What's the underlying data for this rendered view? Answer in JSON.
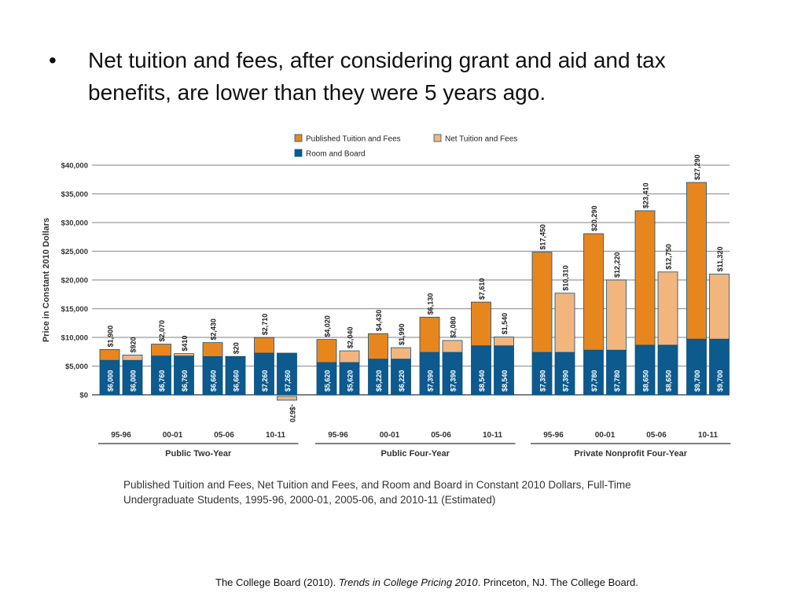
{
  "slide": {
    "bullet_symbol": "•",
    "bullet_text": "Net tuition and fees, after considering grant and aid and tax benefits, are lower than they were 5 years ago.",
    "citation": {
      "part1": "The College Board (2010). ",
      "title": "Trends in College Pricing 2010",
      "part2": ". Princeton, NJ. The College Board."
    }
  },
  "chart_data": {
    "type": "bar",
    "stacked": true,
    "title": "Published Tuition and Fees, Net Tuition and Fees, and Room and Board in Constant 2010 Dollars, Full-Time Undergraduate Students, 1995-96, 2000-01, 2005-06, and 2010-11 (Estimated)",
    "title_line1": "Published Tuition and Fees, Net Tuition and Fees, and Room and Board in Constant 2010 Dollars, Full-Time",
    "title_line2": "Undergraduate Students, 1995-96, 2000-01, 2005-06, and 2010-11 (Estimated)",
    "ylabel": "Price in Constant 2010 Dollars",
    "xlabel": "",
    "ylim": [
      0,
      40000
    ],
    "yticks": [
      0,
      5000,
      10000,
      15000,
      20000,
      25000,
      30000,
      35000,
      40000
    ],
    "ytick_labels": [
      "$0",
      "$5,000",
      "$10,000",
      "$15,000",
      "$20,000",
      "$25,000",
      "$30,000",
      "$35,000",
      "$40,000"
    ],
    "grid": true,
    "legend_position": "top-center",
    "colors": {
      "published": "#e8861e",
      "net": "#f3b57e",
      "room_board": "#0c5a8e",
      "grid": "#9a9a9a",
      "text": "#222222"
    },
    "legend": [
      {
        "key": "published",
        "label": "Published Tuition and Fees"
      },
      {
        "key": "net",
        "label": "Net Tuition and Fees"
      },
      {
        "key": "room_board",
        "label": "Room and Board"
      }
    ],
    "groups": [
      {
        "name": "Public Two-Year",
        "years": [
          {
            "label": "95-96",
            "published": {
              "room_board": 6000,
              "tuition": 1900,
              "room_label": "$6,000",
              "tuition_label": "$1,900"
            },
            "net": {
              "room_board": 6000,
              "tuition": 920,
              "room_label": "$6,000",
              "tuition_label": "$920"
            }
          },
          {
            "label": "00-01",
            "published": {
              "room_board": 6760,
              "tuition": 2070,
              "room_label": "$6,760",
              "tuition_label": "$2,070"
            },
            "net": {
              "room_board": 6760,
              "tuition": 410,
              "room_label": "$6,760",
              "tuition_label": "$410"
            }
          },
          {
            "label": "05-06",
            "published": {
              "room_board": 6660,
              "tuition": 2430,
              "room_label": "$6,660",
              "tuition_label": "$2,430"
            },
            "net": {
              "room_board": 6660,
              "tuition": 20,
              "room_label": "$6,660",
              "tuition_label": "$20"
            }
          },
          {
            "label": "10-11",
            "published": {
              "room_board": 7260,
              "tuition": 2710,
              "room_label": "$7,260",
              "tuition_label": "$2,710"
            },
            "net": {
              "room_board": 7260,
              "tuition": -670,
              "room_label": "$7,260",
              "tuition_label": "-$670"
            }
          }
        ]
      },
      {
        "name": "Public Four-Year",
        "years": [
          {
            "label": "95-96",
            "published": {
              "room_board": 5620,
              "tuition": 4020,
              "room_label": "$5,620",
              "tuition_label": "$4,020"
            },
            "net": {
              "room_board": 5620,
              "tuition": 2040,
              "room_label": "$5,620",
              "tuition_label": "$2,040"
            }
          },
          {
            "label": "00-01",
            "published": {
              "room_board": 6220,
              "tuition": 4430,
              "room_label": "$6,220",
              "tuition_label": "$4,430"
            },
            "net": {
              "room_board": 6220,
              "tuition": 1990,
              "room_label": "$6,220",
              "tuition_label": "$1,990"
            }
          },
          {
            "label": "05-06",
            "published": {
              "room_board": 7390,
              "tuition": 6130,
              "room_label": "$7,390",
              "tuition_label": "$6,130"
            },
            "net": {
              "room_board": 7390,
              "tuition": 2080,
              "room_label": "$7,390",
              "tuition_label": "$2,080"
            }
          },
          {
            "label": "10-11",
            "published": {
              "room_board": 8540,
              "tuition": 7610,
              "room_label": "$8,540",
              "tuition_label": "$7,610"
            },
            "net": {
              "room_board": 8540,
              "tuition": 1540,
              "room_label": "$8,540",
              "tuition_label": "$1,540"
            }
          }
        ]
      },
      {
        "name": "Private Nonprofit Four-Year",
        "years": [
          {
            "label": "95-96",
            "published": {
              "room_board": 7390,
              "tuition": 17450,
              "room_label": "$7,390",
              "tuition_label": "$17,450"
            },
            "net": {
              "room_board": 7390,
              "tuition": 10310,
              "room_label": "$7,390",
              "tuition_label": "$10,310"
            }
          },
          {
            "label": "00-01",
            "published": {
              "room_board": 7780,
              "tuition": 20290,
              "room_label": "$7,780",
              "tuition_label": "$20,290"
            },
            "net": {
              "room_board": 7780,
              "tuition": 12220,
              "room_label": "$7,780",
              "tuition_label": "$12,220"
            }
          },
          {
            "label": "05-06",
            "published": {
              "room_board": 8650,
              "tuition": 23410,
              "room_label": "$8,650",
              "tuition_label": "$23,410"
            },
            "net": {
              "room_board": 8650,
              "tuition": 12750,
              "room_label": "$8,650",
              "tuition_label": "$12,750"
            }
          },
          {
            "label": "10-11",
            "published": {
              "room_board": 9700,
              "tuition": 27290,
              "room_label": "$9,700",
              "tuition_label": "$27,290"
            },
            "net": {
              "room_board": 9700,
              "tuition": 11320,
              "room_label": "$9,700",
              "tuition_label": "$11,320"
            }
          }
        ]
      }
    ]
  }
}
